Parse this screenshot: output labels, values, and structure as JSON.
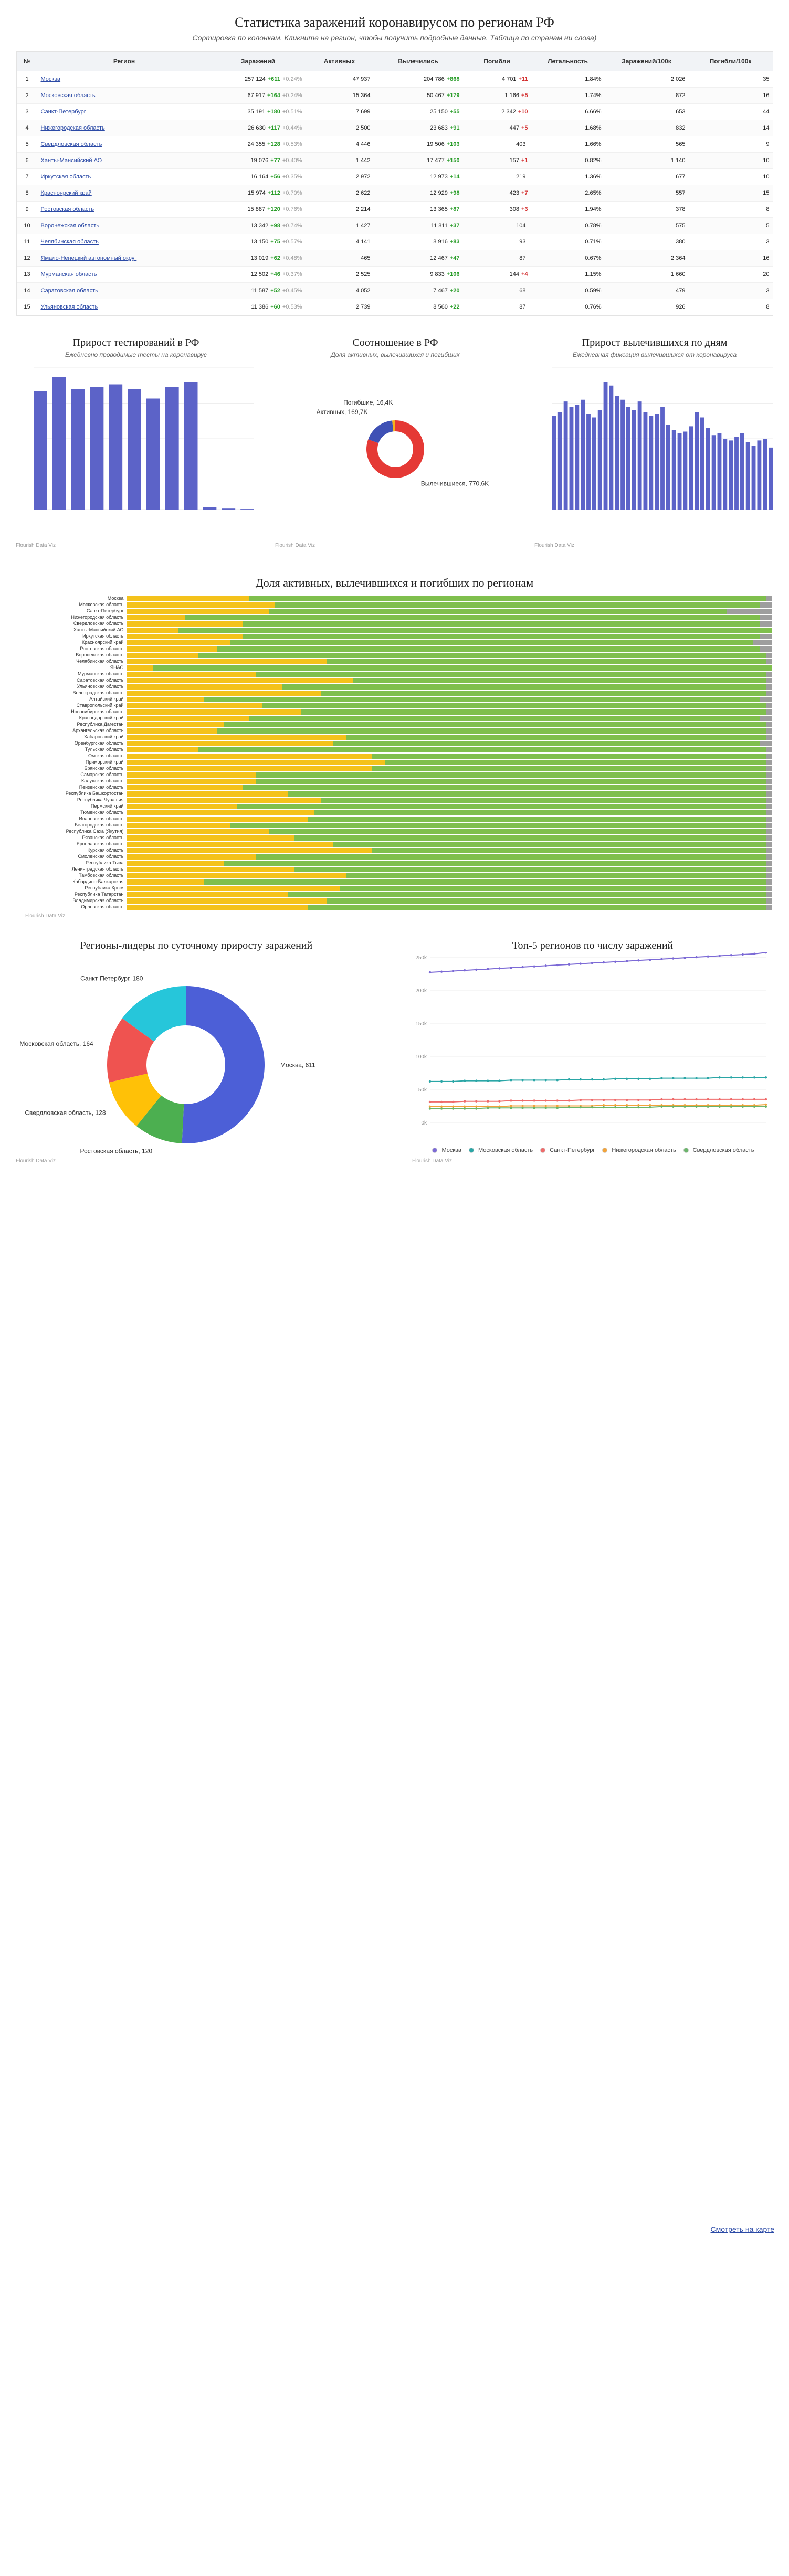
{
  "header": {
    "title": "Статистика заражений коронавирусом по регионам РФ",
    "subtitle": "Сортировка по колонкам. Кликните на регион, чтобы получить подробные данные. Таблица по странам ни слова)"
  },
  "table": {
    "columns": [
      "№",
      "Регион",
      "Заражений",
      "Активных",
      "Вылечились",
      "Погибли",
      "Летальность",
      "Заражений/100к",
      "Погибли/100к"
    ],
    "rows": [
      {
        "n": "1",
        "region": "Москва",
        "cases": "257 124",
        "cases_delta": "+611",
        "cases_pct": "+0.24%",
        "active": "47 937",
        "recovered": "204 786",
        "recovered_delta": "+868",
        "deaths": "4 701",
        "deaths_delta": "+11",
        "fatality": "1.84%",
        "cases100k": "2 026",
        "deaths100k": "35"
      },
      {
        "n": "2",
        "region": "Московская область",
        "cases": "67 917",
        "cases_delta": "+164",
        "cases_pct": "+0.24%",
        "active": "15 364",
        "recovered": "50 467",
        "recovered_delta": "+179",
        "deaths": "1 166",
        "deaths_delta": "+5",
        "fatality": "1.74%",
        "cases100k": "872",
        "deaths100k": "16"
      },
      {
        "n": "3",
        "region": "Санкт-Петербург",
        "cases": "35 191",
        "cases_delta": "+180",
        "cases_pct": "+0.51%",
        "active": "7 699",
        "recovered": "25 150",
        "recovered_delta": "+55",
        "deaths": "2 342",
        "deaths_delta": "+10",
        "fatality": "6.66%",
        "cases100k": "653",
        "deaths100k": "44"
      },
      {
        "n": "4",
        "region": "Нижегородская область",
        "cases": "26 630",
        "cases_delta": "+117",
        "cases_pct": "+0.44%",
        "active": "2 500",
        "recovered": "23 683",
        "recovered_delta": "+91",
        "deaths": "447",
        "deaths_delta": "+5",
        "fatality": "1.68%",
        "cases100k": "832",
        "deaths100k": "14"
      },
      {
        "n": "5",
        "region": "Свердловская область",
        "cases": "24 355",
        "cases_delta": "+128",
        "cases_pct": "+0.53%",
        "active": "4 446",
        "recovered": "19 506",
        "recovered_delta": "+103",
        "deaths": "403",
        "deaths_delta": "",
        "fatality": "1.66%",
        "cases100k": "565",
        "deaths100k": "9"
      },
      {
        "n": "6",
        "region": "Ханты-Мансийский АО",
        "cases": "19 076",
        "cases_delta": "+77",
        "cases_pct": "+0.40%",
        "active": "1 442",
        "recovered": "17 477",
        "recovered_delta": "+150",
        "deaths": "157",
        "deaths_delta": "+1",
        "fatality": "0.82%",
        "cases100k": "1 140",
        "deaths100k": "10"
      },
      {
        "n": "7",
        "region": "Иркутская область",
        "cases": "16 164",
        "cases_delta": "+56",
        "cases_pct": "+0.35%",
        "active": "2 972",
        "recovered": "12 973",
        "recovered_delta": "+14",
        "deaths": "219",
        "deaths_delta": "",
        "fatality": "1.36%",
        "cases100k": "677",
        "deaths100k": "10"
      },
      {
        "n": "8",
        "region": "Красноярский край",
        "cases": "15 974",
        "cases_delta": "+112",
        "cases_pct": "+0.70%",
        "active": "2 622",
        "recovered": "12 929",
        "recovered_delta": "+98",
        "deaths": "423",
        "deaths_delta": "+7",
        "fatality": "2.65%",
        "cases100k": "557",
        "deaths100k": "15"
      },
      {
        "n": "9",
        "region": "Ростовская область",
        "cases": "15 887",
        "cases_delta": "+120",
        "cases_pct": "+0.76%",
        "active": "2 214",
        "recovered": "13 365",
        "recovered_delta": "+87",
        "deaths": "308",
        "deaths_delta": "+3",
        "fatality": "1.94%",
        "cases100k": "378",
        "deaths100k": "8"
      },
      {
        "n": "10",
        "region": "Воронежская область",
        "cases": "13 342",
        "cases_delta": "+98",
        "cases_pct": "+0.74%",
        "active": "1 427",
        "recovered": "11 811",
        "recovered_delta": "+37",
        "deaths": "104",
        "deaths_delta": "",
        "fatality": "0.78%",
        "cases100k": "575",
        "deaths100k": "5"
      },
      {
        "n": "11",
        "region": "Челябинская область",
        "cases": "13 150",
        "cases_delta": "+75",
        "cases_pct": "+0.57%",
        "active": "4 141",
        "recovered": "8 916",
        "recovered_delta": "+83",
        "deaths": "93",
        "deaths_delta": "",
        "fatality": "0.71%",
        "cases100k": "380",
        "deaths100k": "3"
      },
      {
        "n": "12",
        "region": "Ямало-Ненецкий автономный округ",
        "cases": "13 019",
        "cases_delta": "+62",
        "cases_pct": "+0.48%",
        "active": "465",
        "recovered": "12 467",
        "recovered_delta": "+47",
        "deaths": "87",
        "deaths_delta": "",
        "fatality": "0.67%",
        "cases100k": "2 364",
        "deaths100k": "16"
      },
      {
        "n": "13",
        "region": "Мурманская область",
        "cases": "12 502",
        "cases_delta": "+46",
        "cases_pct": "+0.37%",
        "active": "2 525",
        "recovered": "9 833",
        "recovered_delta": "+106",
        "deaths": "144",
        "deaths_delta": "+4",
        "fatality": "1.15%",
        "cases100k": "1 660",
        "deaths100k": "20"
      },
      {
        "n": "14",
        "region": "Саратовская область",
        "cases": "11 587",
        "cases_delta": "+52",
        "cases_pct": "+0.45%",
        "active": "4 052",
        "recovered": "7 467",
        "recovered_delta": "+20",
        "deaths": "68",
        "deaths_delta": "",
        "fatality": "0.59%",
        "cases100k": "479",
        "deaths100k": "3"
      },
      {
        "n": "15",
        "region": "Ульяновская область",
        "cases": "11 386",
        "cases_delta": "+60",
        "cases_pct": "+0.53%",
        "active": "2 739",
        "recovered": "8 560",
        "recovered_delta": "+22",
        "deaths": "87",
        "deaths_delta": "",
        "fatality": "0.76%",
        "cases100k": "926",
        "deaths100k": "8"
      }
    ]
  },
  "charts_top": {
    "tests": {
      "title": "Прирост тестирований в РФ",
      "subtitle": "Ежедневно проводимые тесты на коронавирус",
      "footer": "Flourish Data Viz",
      "chart_data": {
        "type": "bar",
        "categories": [
          "1",
          "2",
          "3",
          "4",
          "5",
          "6",
          "7",
          "8",
          "9",
          "10",
          "11",
          "12"
        ],
        "values": [
          250,
          280,
          255,
          260,
          265,
          255,
          235,
          260,
          270,
          5,
          2,
          1
        ],
        "ylim": [
          0,
          300
        ]
      }
    },
    "ratio": {
      "title": "Соотношение в РФ",
      "subtitle": "Доля активных, вылечившихся и погибших",
      "footer": "Flourish Data Viz",
      "chart_data": {
        "type": "pie",
        "labels": [
          "Вылечившиеся, 770,6K",
          "Активных, 169,7K",
          "Погибшие, 16,4K"
        ],
        "values": [
          770.6,
          169.7,
          16.4
        ],
        "colors": [
          "#e53935",
          "#3f51b5",
          "#f6b21a"
        ]
      }
    },
    "recovered": {
      "title": "Прирост вылечившихся по дням",
      "subtitle": "Ежедневная фиксация вылечившихся от коронавируса",
      "footer": "Flourish Data Viz",
      "chart_data": {
        "type": "bar",
        "categories": [
          "1",
          "2",
          "3",
          "4",
          "5",
          "6",
          "7",
          "8",
          "9",
          "10",
          "11",
          "12",
          "13",
          "14",
          "15",
          "16",
          "17",
          "18",
          "19",
          "20",
          "21",
          "22",
          "23",
          "24",
          "25",
          "26",
          "27",
          "28",
          "29",
          "30",
          "31",
          "32",
          "33",
          "34",
          "35",
          "36",
          "37",
          "38",
          "39"
        ],
        "values": [
          5300,
          5500,
          6100,
          5800,
          5900,
          6200,
          5400,
          5200,
          5600,
          7200,
          7000,
          6400,
          6200,
          5800,
          5600,
          6100,
          5500,
          5300,
          5400,
          5800,
          4800,
          4500,
          4300,
          4400,
          4700,
          5500,
          5200,
          4600,
          4200,
          4300,
          4000,
          3900,
          4100,
          4300,
          3800,
          3600,
          3900,
          4000,
          3500
        ],
        "ylim": [
          0,
          8000
        ]
      }
    }
  },
  "stacked": {
    "title": "Доля активных, вылечившихся и погибших по регионам",
    "footer": "Flourish Data Viz",
    "chart_data": {
      "type": "bar",
      "categories": [
        "Москва",
        "Московская область",
        "Санкт-Петербург",
        "Нижегородская область",
        "Свердловская область",
        "Ханты-Мансийский АО",
        "Иркутская область",
        "Красноярский край",
        "Ростовская область",
        "Воронежская область",
        "Челябинская область",
        "ЯНАО",
        "Мурманская область",
        "Саратовская область",
        "Ульяновская область",
        "Волгоградская область",
        "Алтайский край",
        "Ставропольский край",
        "Новосибирская область",
        "Краснодарский край",
        "Республика Дагестан",
        "Архангельская область",
        "Хабаровский край",
        "Оренбургская область",
        "Тульская область",
        "Омская область",
        "Приморский край",
        "Брянская область",
        "Самарская область",
        "Калужская область",
        "Пензенская область",
        "Республика Башкортостан",
        "Республика Чувашия",
        "Пермский край",
        "Тюменская область",
        "Ивановская область",
        "Белгородская область",
        "Республика Саха (Якутия)",
        "Рязанская область",
        "Ярославская область",
        "Курская область",
        "Смоленская область",
        "Республика Тыва",
        "Ленинградская область",
        "Тамбовская область",
        "Кабардино-Балкарская",
        "Республика Крым",
        "Республика Татарстан",
        "Владимирская область",
        "Орловская область"
      ],
      "series": [
        {
          "name": "Активных",
          "values": [
            19,
            23,
            22,
            9,
            18,
            8,
            18,
            16,
            14,
            11,
            31,
            4,
            20,
            35,
            24,
            30,
            12,
            21,
            27,
            19,
            15,
            14,
            34,
            32,
            11,
            38,
            40,
            38,
            20,
            20,
            18,
            25,
            30,
            17,
            29,
            28,
            16,
            22,
            26,
            32,
            38,
            20,
            15,
            26,
            34,
            12,
            33,
            25,
            31,
            28
          ]
        },
        {
          "name": "Вылечившиеся",
          "values": [
            80,
            75,
            71,
            89,
            80,
            92,
            80,
            81,
            84,
            88,
            68,
            96,
            79,
            64,
            75,
            69,
            86,
            78,
            72,
            79,
            84,
            85,
            65,
            66,
            88,
            61,
            59,
            61,
            79,
            79,
            81,
            74,
            69,
            82,
            70,
            71,
            83,
            77,
            73,
            67,
            61,
            79,
            84,
            73,
            65,
            87,
            66,
            74,
            68,
            71
          ]
        },
        {
          "name": "Погибли",
          "values": [
            1,
            2,
            7,
            2,
            2,
            0,
            2,
            3,
            2,
            1,
            1,
            0,
            1,
            1,
            1,
            1,
            2,
            1,
            1,
            2,
            1,
            1,
            1,
            2,
            1,
            1,
            1,
            1,
            1,
            1,
            1,
            1,
            1,
            1,
            1,
            1,
            1,
            1,
            1,
            1,
            1,
            1,
            1,
            1,
            1,
            1,
            1,
            1,
            1,
            1
          ]
        }
      ],
      "colors": {
        "active": "#f4c21b",
        "recovered": "#7fbf4d",
        "deaths": "#9e9e9e"
      }
    },
    "link_label": "Смотреть на карте"
  },
  "bottom": {
    "leaders": {
      "title": "Регионы-лидеры по суточному приросту заражений",
      "footer": "Flourish Data Viz",
      "chart_data": {
        "type": "pie",
        "labels": [
          "Москва, 611",
          "Ростовская область, 120",
          "Свердловская область, 128",
          "Московская область, 164",
          "Санкт-Петербург, 180"
        ],
        "values": [
          611,
          120,
          128,
          164,
          180
        ],
        "colors": [
          "#4c5fd7",
          "#4caf50",
          "#ffc107",
          "#ef5350",
          "#26c6da"
        ]
      }
    },
    "top5": {
      "title": "Топ-5 регионов по числу заражений",
      "footer": "Flourish Data Viz",
      "chart_data": {
        "type": "line",
        "x": [
          "1",
          "2",
          "3",
          "4",
          "5",
          "6",
          "7",
          "8",
          "9",
          "10",
          "11",
          "12",
          "13",
          "14",
          "15",
          "16",
          "17",
          "18",
          "19",
          "20",
          "21",
          "22",
          "23",
          "24",
          "25",
          "26",
          "27",
          "28",
          "29",
          "30"
        ],
        "series": [
          {
            "name": "Москва",
            "values": [
              227,
              228,
              229,
              230,
              231,
              232,
              233,
              234,
              235,
              236,
              237,
              238,
              239,
              240,
              241,
              242,
              243,
              244,
              245,
              246,
              247,
              248,
              249,
              250,
              251,
              252,
              253,
              254,
              255,
              257
            ]
          },
          {
            "name": "Московская область",
            "values": [
              62,
              62,
              62,
              63,
              63,
              63,
              63,
              64,
              64,
              64,
              64,
              64,
              65,
              65,
              65,
              65,
              66,
              66,
              66,
              66,
              67,
              67,
              67,
              67,
              67,
              68,
              68,
              68,
              68,
              68
            ]
          },
          {
            "name": "Санкт-Петербург",
            "values": [
              31,
              31,
              31,
              32,
              32,
              32,
              32,
              33,
              33,
              33,
              33,
              33,
              33,
              34,
              34,
              34,
              34,
              34,
              34,
              34,
              35,
              35,
              35,
              35,
              35,
              35,
              35,
              35,
              35,
              35
            ]
          },
          {
            "name": "Нижегородская область",
            "values": [
              24,
              24,
              24,
              24,
              24,
              24,
              24,
              25,
              25,
              25,
              25,
              25,
              25,
              25,
              25,
              26,
              26,
              26,
              26,
              26,
              26,
              26,
              26,
              26,
              26,
              26,
              26,
              26,
              26,
              27
            ]
          },
          {
            "name": "Свердловская область",
            "values": [
              21,
              21,
              21,
              21,
              21,
              22,
              22,
              22,
              22,
              22,
              22,
              22,
              23,
              23,
              23,
              23,
              23,
              23,
              23,
              23,
              24,
              24,
              24,
              24,
              24,
              24,
              24,
              24,
              24,
              24
            ]
          }
        ],
        "ylim": [
          0,
          250
        ],
        "legend": "bottom"
      }
    }
  }
}
